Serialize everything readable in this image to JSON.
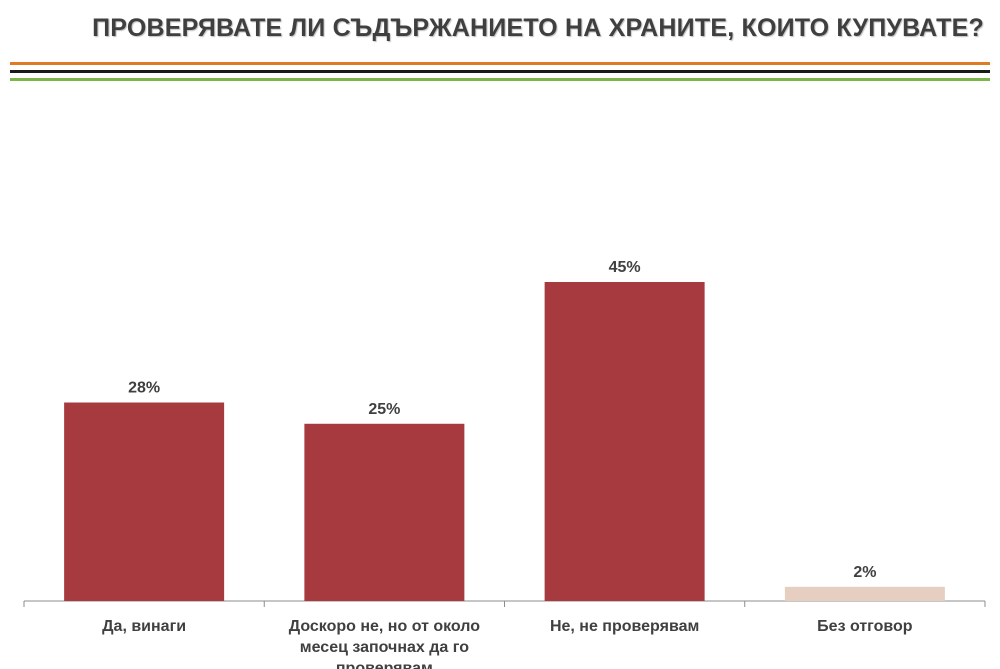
{
  "header": {
    "title": "ПРОВЕРЯВАТЕ ЛИ СЪДЪРЖАНИЕТО НА ХРАНИТЕ, КОИТО КУПУВАТЕ?"
  },
  "decor": {
    "rule_colors": [
      "#e07b23",
      "#1a1a1a",
      "#7ab648"
    ]
  },
  "chart_data": {
    "type": "bar",
    "title": "",
    "xlabel": "",
    "ylabel": "",
    "ylim": [
      0,
      50
    ],
    "grid": false,
    "legend": "none",
    "categories": [
      "Да, винаги",
      "Доскоро не, но от около месец започнах да го проверявам",
      "Не, не проверявам",
      "Без отговор"
    ],
    "category_lines": [
      [
        "Да, винаги"
      ],
      [
        "Доскоро не, но от около",
        "месец започнах да го",
        "проверявам"
      ],
      [
        "Не, не проверявам"
      ],
      [
        "Без отговор"
      ]
    ],
    "values": [
      28,
      25,
      45,
      2
    ],
    "data_labels": [
      "28%",
      "25%",
      "45%",
      "2%"
    ],
    "colors": [
      "#a63a3f",
      "#a63a3f",
      "#a63a3f",
      "#e6cfc0"
    ]
  }
}
